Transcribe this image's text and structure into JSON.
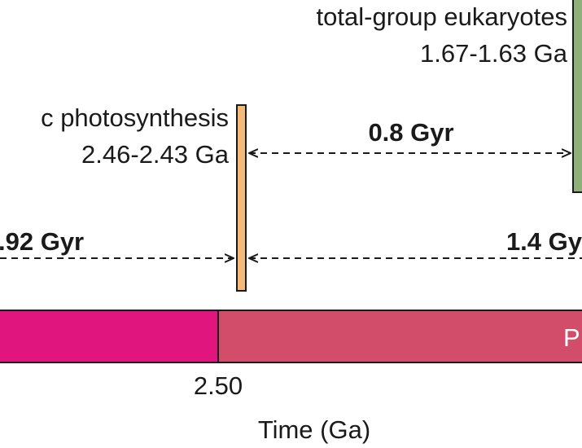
{
  "events": {
    "eukaryotes": {
      "name": "total-group eukaryotes",
      "range": "1.67-1.63 Ga",
      "color": "#8fb07a"
    },
    "photosynthesis": {
      "name": "c photosynthesis",
      "range": "2.46-2.43 Ga",
      "color": "#f5b97a"
    }
  },
  "intervals": {
    "euk_to_photo": "0.8 Gyr",
    "left_partial": ".92 Gyr",
    "right_partial": "1.4 Gy"
  },
  "eons": {
    "left": {
      "color": "#e0157e"
    },
    "right": {
      "label": "P",
      "color": "#d24d6a"
    }
  },
  "axis": {
    "tick_label": "2.50",
    "title": "Time (Ga)"
  }
}
